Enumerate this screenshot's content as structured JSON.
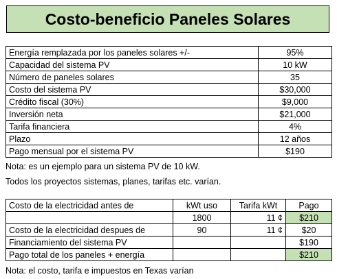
{
  "title": "Costo-beneficio Paneles Solares",
  "summary_rows": [
    {
      "label": "Energía remplazada por los paneles solares  +/-",
      "value": "95%"
    },
    {
      "label": "Capacidad del sistema PV",
      "value": "10 kW"
    },
    {
      "label": "Número de paneles solares",
      "value": "35"
    },
    {
      "label": "Costo del sistema PV",
      "value": "$30,000"
    },
    {
      "label": "Crédito fiscal (30%)",
      "value": "$9,000"
    },
    {
      "label": "Inversión neta",
      "value": "$21,000"
    },
    {
      "label": "Tarifa financiera",
      "value": "4%"
    },
    {
      "label": "Plazo",
      "value": "12 años"
    },
    {
      "label": "Pago mensual por el sistema PV",
      "value": "$190"
    }
  ],
  "notes": [
    "Nota: es un ejemplo para un sistema PV de 10 kW.",
    "Todos los proyectos sistemas, planes, tarifas etc. varían."
  ],
  "electricity": {
    "headers": {
      "label": "Costo de la electricidad antes de",
      "kwh": "kWt uso",
      "rate": "Tarifa kWt",
      "payment": "Pago"
    },
    "before": {
      "kwh": "1800",
      "rate": "11 ¢",
      "payment": "$210"
    },
    "after": {
      "label": "Costo de la electricidad despues de",
      "kwh": "90",
      "rate": "11 ¢",
      "payment": "$20"
    },
    "financing": {
      "label": "Financiamiento del sistema PV",
      "payment": "$190"
    },
    "total": {
      "label": "Pago total de los paneles + energía",
      "payment": "$210"
    }
  },
  "footer_note": "Nota: el costo, tarifa e impuestos en Texas varían",
  "colors": {
    "highlight": "#c5e0b4"
  }
}
